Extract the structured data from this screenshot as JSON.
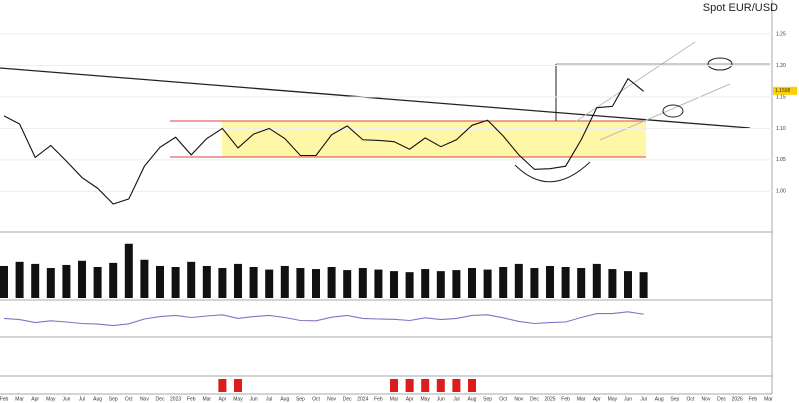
{
  "chart_data": [
    {
      "type": "line",
      "title": "Spot EUR/USD",
      "categories": [
        "Feb",
        "Mar",
        "Apr",
        "May",
        "Jun",
        "Jul",
        "Aug",
        "Sep",
        "Oct",
        "Nov",
        "Dec",
        "2023",
        "Feb",
        "Mar",
        "Apr",
        "May",
        "Jun",
        "Jul",
        "Aug",
        "Sep",
        "Oct",
        "Nov",
        "Dec",
        "2024",
        "Feb",
        "Mar",
        "Apr",
        "May",
        "Jun",
        "Jul",
        "Aug",
        "Sep",
        "Oct",
        "Nov",
        "Dec",
        "2025",
        "Feb",
        "Mar",
        "Apr",
        "May",
        "Jun",
        "Jul",
        "Aug",
        "Sep",
        "Oct",
        "Nov",
        "Dec",
        "2026",
        "Feb",
        "Mar"
      ],
      "series": [
        {
          "color": "#111111",
          "values": [
            1.12,
            1.107,
            1.054,
            1.073,
            1.048,
            1.022,
            1.005,
            0.98,
            0.988,
            1.04,
            1.07,
            1.086,
            1.058,
            1.084,
            1.1,
            1.069,
            1.091,
            1.1,
            1.084,
            1.057,
            1.057,
            1.09,
            1.104,
            1.082,
            1.081,
            1.079,
            1.067,
            1.085,
            1.071,
            1.082,
            1.105,
            1.113,
            1.088,
            1.058,
            1.035,
            1.036,
            1.04,
            1.082,
            1.133,
            1.135,
            1.179,
            1.159,
            null,
            null,
            null,
            null,
            null,
            null,
            null,
            null
          ]
        }
      ],
      "last_price": {
        "value": 1.1598,
        "label": "1.1598"
      },
      "ylim": [
        0.945,
        1.285
      ],
      "yticks": [
        {
          "value": 1.0,
          "label": "1.00"
        },
        1.05,
        {
          "value": 1.1,
          "label": "1.10"
        },
        1.15,
        {
          "value": 1.2,
          "label": "1.20"
        },
        1.25
      ]
    },
    {
      "type": "bar",
      "color": "#111111",
      "values": [
        0.62,
        0.7,
        0.66,
        0.58,
        0.64,
        0.72,
        0.6,
        0.68,
        1.05,
        0.74,
        0.62,
        0.6,
        0.7,
        0.62,
        0.58,
        0.66,
        0.6,
        0.55,
        0.62,
        0.58,
        0.56,
        0.6,
        0.54,
        0.58,
        0.55,
        0.52,
        0.5,
        0.56,
        0.52,
        0.54,
        0.58,
        0.55,
        0.6,
        0.66,
        0.58,
        0.62,
        0.6,
        0.58,
        0.66,
        0.56,
        0.52,
        0.5,
        null,
        null,
        null,
        null,
        null,
        null,
        null,
        null
      ],
      "ylim": [
        0,
        1.2
      ]
    },
    {
      "type": "line",
      "color": "#8a6fc4",
      "values": [
        52,
        48,
        38,
        44,
        40,
        35,
        33,
        28,
        34,
        50,
        58,
        62,
        55,
        60,
        64,
        52,
        58,
        62,
        55,
        45,
        44,
        56,
        62,
        52,
        50,
        49,
        45,
        54,
        48,
        52,
        62,
        64,
        54,
        42,
        35,
        38,
        40,
        55,
        68,
        68,
        74,
        66,
        null,
        null,
        null,
        null,
        null,
        null,
        null,
        null
      ],
      "ylim": [
        0,
        100
      ]
    },
    {
      "type": "bar",
      "color": "#dd1c1c",
      "values": [
        null,
        null,
        null,
        null,
        null,
        null,
        null,
        null,
        null,
        null,
        null,
        null,
        null,
        null,
        1,
        1,
        null,
        null,
        null,
        null,
        null,
        null,
        null,
        null,
        null,
        1,
        1,
        1,
        1,
        1,
        1,
        null,
        null,
        null,
        null,
        null,
        null,
        null,
        null,
        null,
        null,
        null,
        null,
        null,
        null,
        null,
        null,
        null,
        null,
        null
      ],
      "ylim": [
        0,
        1
      ]
    }
  ]
}
